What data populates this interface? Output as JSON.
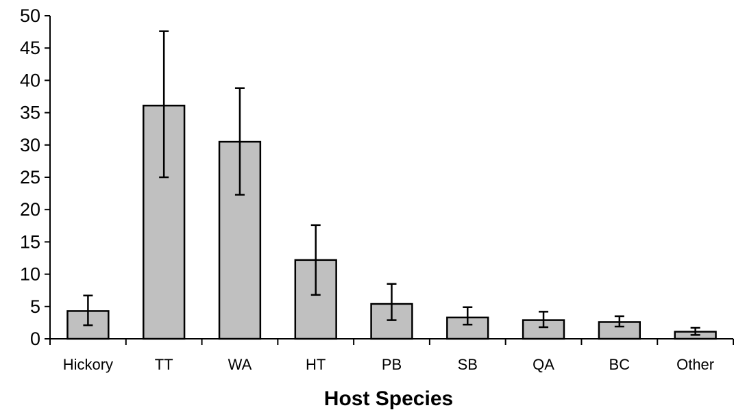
{
  "chart_data": {
    "type": "bar",
    "xlabel": "Host Species",
    "ylabel": "",
    "ylim": [
      0,
      50
    ],
    "yticks": [
      0,
      5,
      10,
      15,
      20,
      25,
      30,
      35,
      40,
      45,
      50
    ],
    "categories": [
      "Hickory",
      "TT",
      "WA",
      "HT",
      "PB",
      "SB",
      "QA",
      "BC",
      "Other"
    ],
    "values": [
      4.3,
      36.1,
      30.5,
      12.2,
      5.4,
      3.3,
      2.9,
      2.6,
      1.1
    ],
    "error_low": [
      2.1,
      25.0,
      22.3,
      6.8,
      2.9,
      2.2,
      1.8,
      1.9,
      0.6
    ],
    "error_high": [
      6.7,
      47.6,
      38.8,
      17.6,
      8.5,
      4.9,
      4.2,
      3.5,
      1.7
    ],
    "colors": {
      "bar_fill": "#c0c0c0",
      "bar_stroke": "#000000"
    },
    "grid": false,
    "legend": "none"
  }
}
